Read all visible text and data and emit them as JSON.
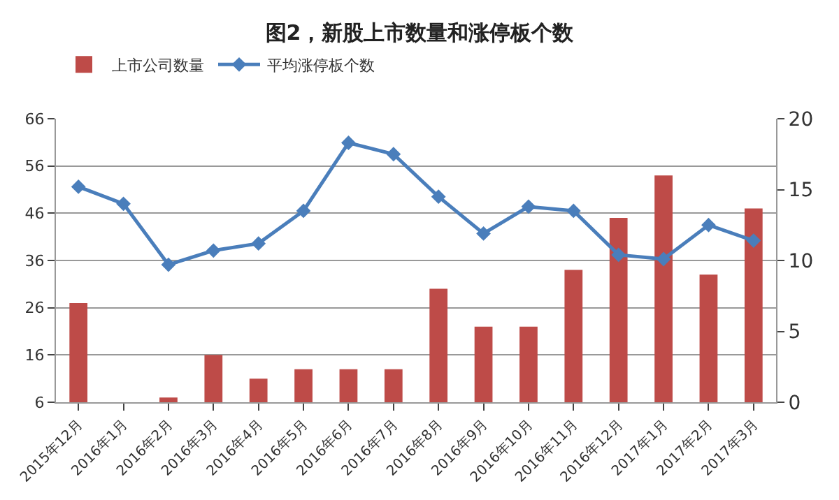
{
  "chart_data": {
    "type": "bar",
    "title": "图2，新股上市数量和涨停板个数",
    "categories": [
      "2015年12月",
      "2016年1月",
      "2016年2月",
      "2016年3月",
      "2016年4月",
      "2016年5月",
      "2016年6月",
      "2016年7月",
      "2016年8月",
      "2016年9月",
      "2016年10月",
      "2016年11月",
      "2016年12月",
      "2017年1月",
      "2017年2月",
      "2017年3月"
    ],
    "series": [
      {
        "name": "上市公司数量",
        "color": "#be4b48",
        "values": [
          27,
          null,
          7,
          16,
          11,
          13,
          13,
          13,
          30,
          22,
          22,
          34,
          45,
          54,
          33,
          47
        ]
      },
      {
        "name": "平均涨停板个数",
        "type": "line",
        "axis": "y2",
        "color": "#4a7ebb",
        "marker": "diamond",
        "values": [
          15.2,
          14.0,
          9.7,
          10.7,
          11.2,
          13.5,
          18.3,
          17.5,
          14.5,
          11.9,
          13.8,
          13.5,
          10.4,
          10.1,
          12.5,
          11.4
        ]
      }
    ],
    "ylim": [
      6,
      66
    ],
    "yticks": [
      6,
      16,
      26,
      36,
      46,
      56,
      66
    ],
    "y2lim": [
      0,
      20
    ],
    "y2ticks": [
      0,
      5,
      10,
      15,
      20
    ],
    "grid": "y",
    "legend": "top left"
  }
}
